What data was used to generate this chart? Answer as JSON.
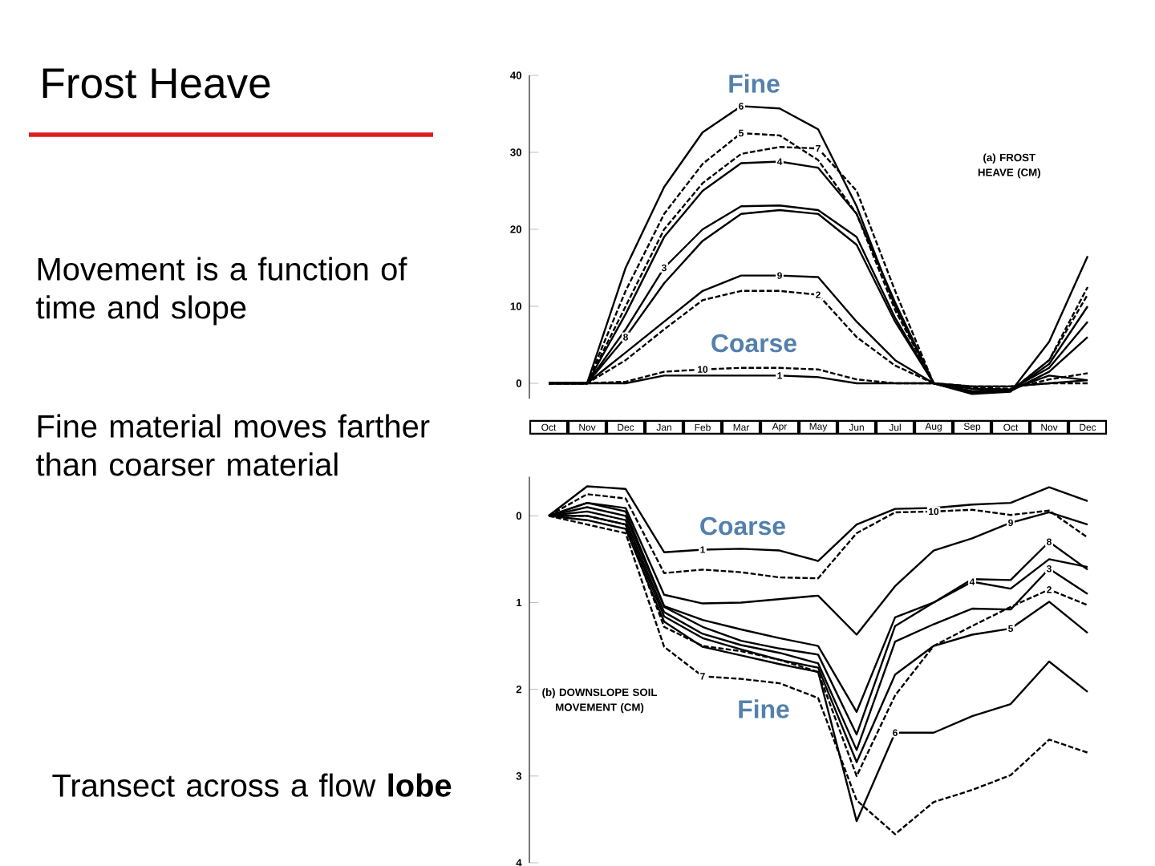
{
  "chart_data": [
    {
      "type": "line",
      "title": "Frost Heave",
      "ylabel": "(a) FROST HEAVE (CM)",
      "annotations": [
        "Movement is a function of time and slope",
        "Fine material moves farther than coarser material",
        "Transect across a flow **lobe**",
        "Fine",
        "Coarse"
      ],
      "categories": [
        "Oct",
        "Nov",
        "Dec",
        "Jan",
        "Feb",
        "Mar",
        "Apr",
        "May",
        "Jun",
        "Jul",
        "Aug",
        "Sep",
        "Oct",
        "Nov",
        "Dec"
      ],
      "ylim": [
        -2,
        40
      ],
      "yticks": [
        0,
        10,
        20,
        30,
        40
      ],
      "series": [
        {
          "name": "6",
          "color": "#000000",
          "line_style": "solid",
          "values": [
            0,
            0,
            15,
            25.5,
            32.6,
            36,
            35.7,
            33,
            23,
            10,
            0,
            -1.4,
            -1.1,
            5.4,
            16.5
          ]
        },
        {
          "name": "5",
          "color": "#000000",
          "line_style": "dashed",
          "values": [
            0,
            0,
            12,
            22,
            28.5,
            32.5,
            32.2,
            29,
            22,
            9.5,
            0,
            -1.1,
            -1,
            3,
            12.5
          ]
        },
        {
          "name": "7",
          "color": "#000000",
          "line_style": "dashed",
          "values": [
            0,
            0,
            10,
            20,
            26,
            29.8,
            30.7,
            30.5,
            25,
            12,
            0,
            -1.2,
            -1,
            3,
            11.5
          ]
        },
        {
          "name": "4",
          "color": "#000000",
          "line_style": "solid",
          "values": [
            0,
            0,
            9,
            19,
            25,
            28.6,
            28.8,
            28,
            22,
            10.5,
            0,
            -1.2,
            -1,
            2.5,
            10
          ]
        },
        {
          "name": "3",
          "color": "#000000",
          "line_style": "solid",
          "values": [
            0,
            0,
            7,
            15,
            20,
            23,
            23.1,
            22.5,
            19,
            8.5,
            0,
            -1,
            -0.8,
            2,
            8
          ]
        },
        {
          "name": "8",
          "color": "#000000",
          "line_style": "solid",
          "values": [
            0,
            0,
            6,
            13,
            18.5,
            22,
            22.5,
            22,
            18,
            8,
            0,
            -1.2,
            -1,
            1.5,
            6
          ]
        },
        {
          "name": "9",
          "color": "#000000",
          "line_style": "solid",
          "values": [
            0,
            0,
            4,
            8,
            12,
            14,
            14,
            13.8,
            8,
            3,
            0,
            -0.7,
            -0.8,
            1,
            0.4
          ]
        },
        {
          "name": "2",
          "color": "#000000",
          "line_style": "dashed",
          "values": [
            0,
            0,
            3,
            7,
            10.8,
            12,
            12,
            11.5,
            6,
            2.3,
            0,
            -0.6,
            -0.7,
            0.5,
            1.3
          ]
        },
        {
          "name": "10",
          "color": "#000000",
          "line_style": "dashed",
          "values": [
            0,
            0,
            0.2,
            1.5,
            1.8,
            2,
            2,
            1.8,
            0.5,
            0,
            0,
            -0.4,
            -0.4,
            0,
            0
          ]
        },
        {
          "name": "1",
          "color": "#000000",
          "line_style": "solid",
          "values": [
            0,
            0,
            0,
            1,
            1,
            1,
            1,
            0.8,
            0,
            0,
            0,
            -0.4,
            -0.4,
            0,
            0.4
          ]
        }
      ]
    },
    {
      "type": "line",
      "ylabel": "(b) DOWNSLOPE SOIL MOVEMENT (CM)",
      "tick_labels": "y",
      "annotations": [
        "Coarse",
        "Fine"
      ],
      "categories": [
        null,
        null,
        null,
        null,
        null,
        null,
        null,
        null,
        null,
        null,
        null,
        null,
        null,
        null,
        null
      ],
      "ylim": [
        4,
        -0.45
      ],
      "yticks": [
        0,
        1,
        2,
        3,
        4
      ],
      "series": [
        {
          "name": "1",
          "color": "#000000",
          "line_style": "solid",
          "values": [
            0,
            -0.34,
            -0.31,
            0.42,
            0.39,
            0.38,
            0.4,
            0.52,
            0.1,
            -0.08,
            -0.09,
            -0.13,
            -0.15,
            -0.33,
            -0.17
          ]
        },
        {
          "name": "10",
          "color": "#000000",
          "line_style": "dashed",
          "values": [
            0,
            -0.25,
            -0.2,
            0.66,
            0.62,
            0.65,
            0.71,
            0.72,
            0.2,
            -0.04,
            -0.05,
            -0.07,
            -0.01,
            -0.06,
            0.25
          ]
        },
        {
          "name": "9",
          "color": "#000000",
          "line_style": "solid",
          "values": [
            0,
            -0.15,
            -0.09,
            0.91,
            1.01,
            1.0,
            0.96,
            0.92,
            1.37,
            0.81,
            0.4,
            0.26,
            0.08,
            -0.04,
            0.1
          ]
        },
        {
          "name": "4",
          "color": "#000000",
          "line_style": "solid",
          "values": [
            0,
            -0.15,
            -0.05,
            1.04,
            1.2,
            1.31,
            1.41,
            1.5,
            2.26,
            1.17,
            1.0,
            0.76,
            0.84,
            0.5,
            0.59
          ]
        },
        {
          "name": "8",
          "color": "#000000",
          "line_style": "solid",
          "values": [
            0,
            -0.1,
            0,
            1.05,
            1.28,
            1.44,
            1.53,
            1.6,
            2.52,
            1.27,
            1.0,
            0.73,
            0.74,
            0.3,
            0.62
          ]
        },
        {
          "name": "3",
          "color": "#000000",
          "line_style": "solid",
          "values": [
            0,
            -0.05,
            0.05,
            1.11,
            1.36,
            1.49,
            1.58,
            1.7,
            2.7,
            1.45,
            1.25,
            1.07,
            1.08,
            0.61,
            0.9
          ]
        },
        {
          "name": "5",
          "color": "#000000",
          "line_style": "solid",
          "values": [
            0,
            0,
            0.1,
            1.16,
            1.41,
            1.54,
            1.66,
            1.75,
            2.84,
            1.83,
            1.5,
            1.37,
            1.3,
            0.99,
            1.35
          ]
        },
        {
          "name": "6",
          "color": "#000000",
          "line_style": "solid",
          "values": [
            0,
            0.05,
            0.15,
            1.22,
            1.51,
            1.61,
            1.71,
            1.8,
            3.52,
            2.5,
            2.5,
            2.31,
            2.17,
            1.68,
            2.03
          ]
        },
        {
          "name": "7",
          "color": "#000000",
          "line_style": "dashed",
          "values": [
            0,
            0.1,
            0.2,
            1.51,
            1.85,
            1.88,
            1.93,
            2.1,
            3.28,
            3.67,
            3.3,
            3.16,
            2.99,
            2.58,
            2.73
          ]
        },
        {
          "name": "2",
          "color": "#000000",
          "line_style": "dashed",
          "values": [
            0,
            0,
            0.1,
            1.28,
            1.5,
            1.56,
            1.66,
            1.8,
            3.0,
            2.07,
            1.5,
            1.27,
            1.05,
            0.85,
            1.03
          ]
        }
      ]
    }
  ]
}
